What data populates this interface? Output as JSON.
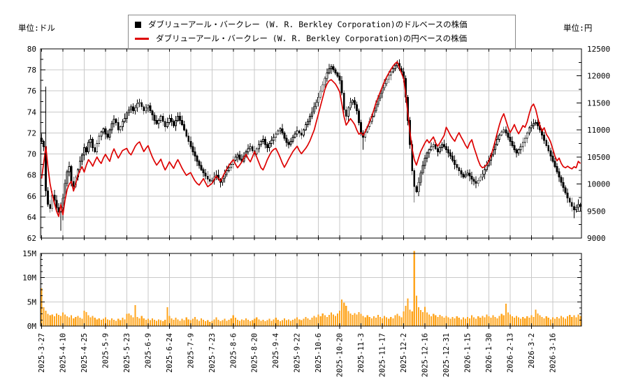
{
  "units": {
    "left": "単位:ドル",
    "right": "単位:円"
  },
  "legend": {
    "items": [
      {
        "marker": "square",
        "color": "#000000",
        "label": "ダブリューアール・バークレー (W. R. Berkley Corporation)のドルベースの株価"
      },
      {
        "marker": "line",
        "color": "#dd0000",
        "label": "ダブリューアール・バークレー (W. R. Berkley Corporation)の円ベースの株価"
      }
    ]
  },
  "chart_data": {
    "type": "candlestick+line+volume",
    "num_days": 254,
    "x_tick_interval_days": 10,
    "x_tick_labels": [
      "2025-3-27",
      "2025-4-10",
      "2025-4-25",
      "2025-5-9",
      "2025-5-23",
      "2025-6-9",
      "2025-6-24",
      "2025-7-9",
      "2025-7-23",
      "2025-8-6",
      "2025-8-20",
      "2025-9-4",
      "2025-9-22",
      "2025-10-6",
      "2025-10-20",
      "2025-11-3",
      "2025-11-17",
      "2025-12-2",
      "2025-12-16",
      "2025-12-31",
      "2026-1-15",
      "2026-1-30",
      "2026-2-13",
      "2026-3-2",
      "2026-3-16"
    ],
    "left_axis": {
      "unit": "単位:ドル",
      "min": 62,
      "max": 80,
      "tick_step": 2,
      "minor_step": 1,
      "tick_labels": [
        "62",
        "64",
        "66",
        "68",
        "70",
        "72",
        "74",
        "76",
        "78",
        "80"
      ]
    },
    "right_axis": {
      "unit": "単位:円",
      "min": 9000,
      "max": 12500,
      "tick_step": 500,
      "minor_step": 250,
      "tick_labels": [
        "9000",
        "9500",
        "10000",
        "10500",
        "11000",
        "11500",
        "12000",
        "12500"
      ]
    },
    "volume_axis": {
      "min": 0,
      "max": 15,
      "tick_step": 5,
      "minor_step": 1.25,
      "tick_labels": [
        "0M",
        "5M",
        "10M",
        "15M"
      ]
    },
    "grid": true,
    "colors": {
      "grid": "#c9c9c9",
      "frame": "#000000"
    },
    "series": [
      {
        "name": "ダブリューアール・バークレー (W. R. Berkley Corporation)のドルベースの株価",
        "type": "candlestick",
        "axis": "left",
        "up_color": "#ffffff",
        "down_color": "#000000",
        "close": [
          71.2,
          70.7,
          66.5,
          65.2,
          64.8,
          66.1,
          65.6,
          64.9,
          64.5,
          64.9,
          65.8,
          67.2,
          68.3,
          68.8,
          67.4,
          66.9,
          67.8,
          68.5,
          69.3,
          69.9,
          70.6,
          70.2,
          71.1,
          71.4,
          70.6,
          70.2,
          71.0,
          71.7,
          72.1,
          72.4,
          71.9,
          71.6,
          72.3,
          72.9,
          73.3,
          73.0,
          72.3,
          72.6,
          73.1,
          73.4,
          73.9,
          74.2,
          74.5,
          74.1,
          74.4,
          74.8,
          74.9,
          74.5,
          74.1,
          74.4,
          74.6,
          74.1,
          73.7,
          73.2,
          72.9,
          73.2,
          73.6,
          73.1,
          72.6,
          73.0,
          73.4,
          73.1,
          72.7,
          73.2,
          73.6,
          73.2,
          72.8,
          72.3,
          71.7,
          71.2,
          70.7,
          70.2,
          69.8,
          69.3,
          68.9,
          68.5,
          68.2,
          67.9,
          67.6,
          67.4,
          67.5,
          67.8,
          68.0,
          67.6,
          67.3,
          67.7,
          68.1,
          68.4,
          68.7,
          69.0,
          69.4,
          69.7,
          69.9,
          69.5,
          69.3,
          69.8,
          70.2,
          70.5,
          70.7,
          70.3,
          70.0,
          70.5,
          70.9,
          71.2,
          71.4,
          70.9,
          70.6,
          71.0,
          71.3,
          71.6,
          71.9,
          72.2,
          72.4,
          72.0,
          71.5,
          71.1,
          70.9,
          71.2,
          71.6,
          71.9,
          72.2,
          72.0,
          71.8,
          72.3,
          72.8,
          73.1,
          73.6,
          74.0,
          74.5,
          74.9,
          75.4,
          76.0,
          76.6,
          77.2,
          77.7,
          78.1,
          78.3,
          78.0,
          77.7,
          77.4,
          77.0,
          75.8,
          74.2,
          73.6,
          74.4,
          74.9,
          75.1,
          74.7,
          74.1,
          73.0,
          72.0,
          71.6,
          72.1,
          72.6,
          73.1,
          73.6,
          74.1,
          74.7,
          75.3,
          75.8,
          76.3,
          76.7,
          77.1,
          77.5,
          77.8,
          78.1,
          78.4,
          78.6,
          78.1,
          77.8,
          77.2,
          75.4,
          73.2,
          70.9,
          68.4,
          66.9,
          66.4,
          67.3,
          68.2,
          68.9,
          69.6,
          70.1,
          70.4,
          70.7,
          70.9,
          70.5,
          70.2,
          70.6,
          70.9,
          70.7,
          70.4,
          70.1,
          69.8,
          69.4,
          69.0,
          68.7,
          68.4,
          68.1,
          67.8,
          68.0,
          68.2,
          67.9,
          67.6,
          67.4,
          67.2,
          67.5,
          67.8,
          68.1,
          68.5,
          68.9,
          69.4,
          69.9,
          70.4,
          70.9,
          71.4,
          71.8,
          72.1,
          72.3,
          72.0,
          71.6,
          71.2,
          70.8,
          70.4,
          70.1,
          70.4,
          70.7,
          71.1,
          71.5,
          72.0,
          72.5,
          72.7,
          72.9,
          73.0,
          72.7,
          72.3,
          71.8,
          71.3,
          70.8,
          70.3,
          69.8,
          69.3,
          68.8,
          68.3,
          67.8,
          67.3,
          66.8,
          66.3,
          65.8,
          65.4,
          65.0,
          64.7,
          64.9,
          65.2,
          65.0
        ],
        "wick_overrides": {
          "2": {
            "h": 76.4,
            "l": 66.0
          },
          "9": {
            "l": 62.7
          },
          "10": {
            "l": 63.7
          },
          "151": {
            "l": 70.4
          },
          "167": {
            "h": 78.9
          },
          "175": {
            "l": 65.4
          },
          "250": {
            "l": 63.9
          }
        }
      },
      {
        "name": "ダブリューアール・バークレー (W. R. Berkley Corporation)の円ベースの株価",
        "type": "line",
        "axis": "right",
        "color": "#dd0000",
        "values": [
          10100,
          10400,
          10690,
          10300,
          10000,
          9800,
          9650,
          9500,
          9400,
          9620,
          9430,
          9700,
          9900,
          10000,
          10050,
          9870,
          10000,
          10150,
          10250,
          10320,
          10220,
          10350,
          10450,
          10400,
          10330,
          10420,
          10500,
          10430,
          10380,
          10480,
          10550,
          10480,
          10420,
          10560,
          10650,
          10560,
          10480,
          10550,
          10620,
          10640,
          10660,
          10580,
          10540,
          10620,
          10700,
          10750,
          10780,
          10690,
          10600,
          10660,
          10710,
          10600,
          10500,
          10420,
          10350,
          10400,
          10460,
          10350,
          10260,
          10330,
          10410,
          10350,
          10290,
          10380,
          10450,
          10370,
          10290,
          10220,
          10160,
          10190,
          10210,
          10130,
          10060,
          10010,
          9980,
          10040,
          10100,
          10020,
          9950,
          9980,
          10010,
          10080,
          10150,
          10100,
          10050,
          10130,
          10210,
          10280,
          10350,
          10400,
          10450,
          10370,
          10300,
          10350,
          10410,
          10480,
          10550,
          10470,
          10410,
          10500,
          10600,
          10500,
          10400,
          10300,
          10260,
          10350,
          10450,
          10530,
          10600,
          10640,
          10660,
          10580,
          10490,
          10390,
          10310,
          10380,
          10460,
          10530,
          10600,
          10650,
          10700,
          10620,
          10560,
          10610,
          10660,
          10720,
          10800,
          10900,
          11000,
          11150,
          11300,
          11450,
          11600,
          11750,
          11850,
          11910,
          11930,
          11890,
          11850,
          11780,
          11700,
          11480,
          11250,
          11090,
          11150,
          11210,
          11160,
          11100,
          11000,
          10920,
          10950,
          10900,
          10980,
          11060,
          11150,
          11250,
          11370,
          11500,
          11600,
          11700,
          11800,
          11900,
          11980,
          12050,
          12120,
          12180,
          12230,
          12260,
          12150,
          12050,
          11950,
          11650,
          11300,
          10950,
          10650,
          10450,
          10350,
          10480,
          10600,
          10680,
          10760,
          10820,
          10760,
          10820,
          10870,
          10760,
          10700,
          10760,
          10830,
          10900,
          11050,
          10980,
          10900,
          10840,
          10790,
          10880,
          10950,
          10870,
          10800,
          10720,
          10660,
          10760,
          10820,
          10680,
          10560,
          10440,
          10340,
          10300,
          10320,
          10360,
          10420,
          10520,
          10650,
          10800,
          10950,
          11100,
          11220,
          11300,
          11180,
          11050,
          10950,
          11020,
          11100,
          11000,
          10930,
          11000,
          11080,
          11050,
          11150,
          11300,
          11430,
          11480,
          11380,
          11220,
          11080,
          10980,
          11040,
          10920,
          10860,
          10780,
          10650,
          10520,
          10430,
          10480,
          10380,
          10320,
          10300,
          10330,
          10300,
          10280,
          10320,
          10300,
          10420,
          10380
        ]
      },
      {
        "name": "出来高",
        "type": "bar",
        "panel": "volume",
        "color": "#ffa51e",
        "unit": "M",
        "values": [
          7.8,
          3.9,
          3.2,
          2.5,
          2.2,
          2.4,
          2.0,
          2.6,
          2.3,
          2.1,
          2.8,
          2.4,
          2.0,
          1.8,
          2.2,
          1.6,
          1.9,
          2.1,
          1.7,
          1.5,
          3.2,
          2.9,
          2.2,
          1.8,
          2.1,
          1.7,
          1.4,
          1.6,
          1.3,
          1.5,
          1.8,
          1.4,
          1.2,
          1.6,
          1.3,
          1.1,
          1.5,
          1.2,
          1.7,
          1.4,
          2.5,
          2.6,
          2.2,
          1.8,
          4.3,
          1.9,
          1.6,
          2.1,
          1.6,
          1.3,
          1.5,
          1.2,
          1.6,
          1.3,
          1.1,
          1.4,
          1.2,
          1.0,
          1.3,
          3.9,
          2.1,
          1.6,
          1.3,
          1.7,
          1.4,
          1.1,
          1.5,
          1.2,
          1.8,
          1.4,
          1.2,
          1.5,
          1.9,
          1.4,
          1.1,
          1.6,
          1.3,
          1.0,
          1.2,
          0.9,
          1.1,
          1.4,
          1.8,
          1.3,
          1.0,
          1.2,
          1.5,
          1.1,
          1.3,
          1.6,
          2.2,
          1.7,
          1.3,
          1.1,
          1.4,
          1.2,
          1.6,
          1.3,
          1.0,
          1.2,
          1.5,
          1.8,
          1.4,
          1.1,
          1.3,
          1.0,
          1.2,
          1.5,
          1.1,
          1.4,
          1.7,
          1.3,
          1.0,
          1.2,
          1.6,
          1.2,
          1.4,
          1.1,
          1.3,
          1.5,
          1.8,
          1.4,
          1.2,
          1.5,
          1.9,
          1.6,
          1.3,
          1.7,
          2.1,
          1.8,
          2.4,
          2.0,
          2.6,
          2.2,
          1.9,
          2.3,
          2.8,
          2.4,
          2.1,
          2.6,
          3.2,
          5.5,
          4.8,
          4.2,
          3.1,
          2.6,
          2.3,
          2.7,
          2.4,
          2.9,
          2.5,
          2.1,
          1.8,
          2.2,
          1.9,
          1.6,
          2.0,
          1.7,
          2.3,
          1.9,
          1.6,
          2.1,
          1.8,
          1.5,
          1.9,
          1.6,
          2.2,
          2.5,
          2.1,
          1.8,
          3.0,
          4.2,
          5.7,
          3.4,
          3.0,
          15.5,
          6.3,
          3.9,
          3.3,
          2.9,
          4.0,
          2.8,
          2.4,
          2.0,
          2.5,
          2.2,
          1.9,
          2.3,
          2.0,
          1.7,
          2.1,
          1.8,
          1.5,
          1.9,
          1.6,
          2.0,
          1.7,
          1.4,
          1.8,
          1.5,
          1.9,
          1.6,
          2.2,
          1.8,
          1.5,
          2.0,
          1.7,
          2.1,
          1.8,
          2.4,
          2.0,
          1.7,
          2.2,
          1.9,
          1.6,
          2.1,
          2.5,
          2.2,
          4.6,
          2.8,
          2.4,
          2.0,
          1.7,
          2.1,
          1.8,
          1.5,
          1.9,
          1.6,
          2.0,
          1.7,
          2.2,
          1.9,
          3.4,
          2.6,
          2.2,
          1.9,
          1.6,
          2.0,
          1.7,
          1.4,
          1.8,
          1.5,
          1.9,
          1.6,
          2.1,
          1.8,
          1.5,
          2.0,
          2.3,
          1.9,
          2.2,
          1.8,
          2.4,
          2.1
        ]
      }
    ]
  }
}
